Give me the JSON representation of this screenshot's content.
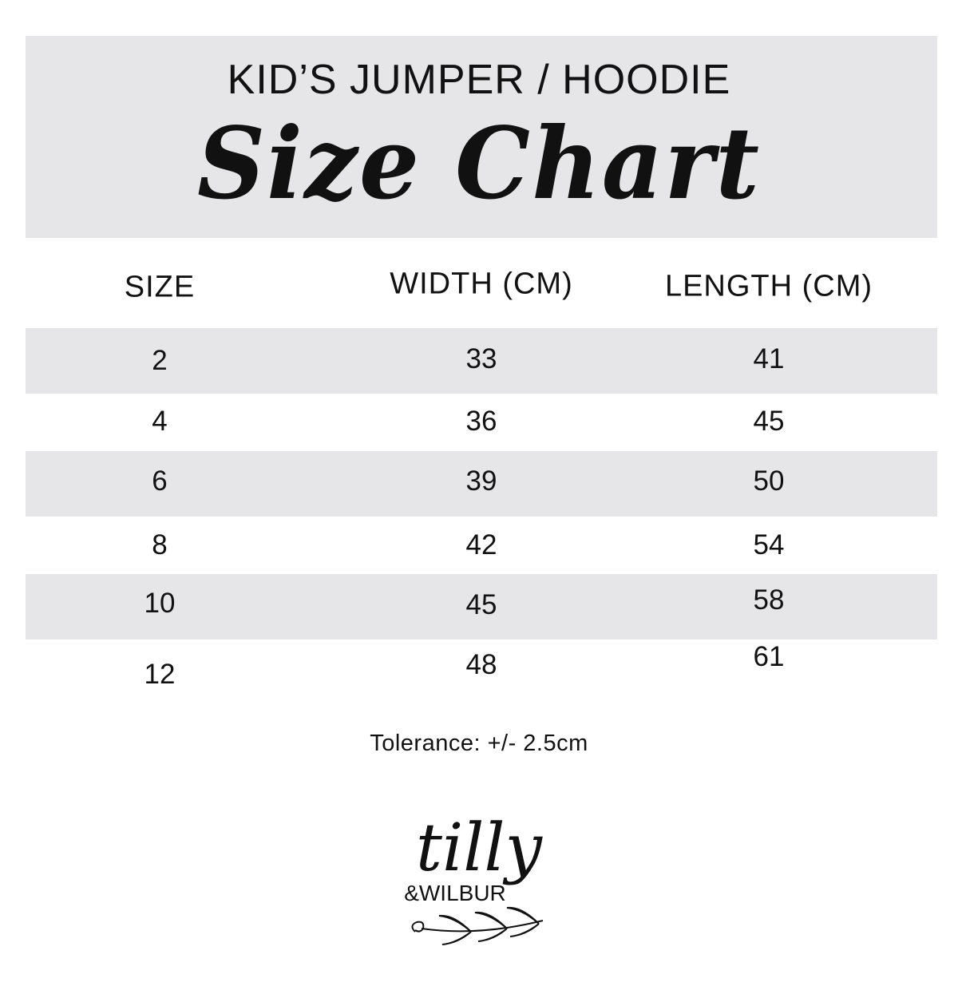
{
  "header": {
    "subtitle": "KID’S JUMPER / HOODIE",
    "title": "Size Chart"
  },
  "table": {
    "columns": [
      "SIZE",
      "WIDTH (CM)",
      "LENGTH (CM)"
    ],
    "rows": [
      [
        "2",
        "33",
        "41"
      ],
      [
        "4",
        "36",
        "45"
      ],
      [
        "6",
        "39",
        "50"
      ],
      [
        "8",
        "42",
        "54"
      ],
      [
        "10",
        "45",
        "58"
      ],
      [
        "12",
        "48",
        "61"
      ]
    ],
    "band_color": "#e6e6e8"
  },
  "footer": {
    "tolerance": "Tolerance: +/- 2.5cm"
  },
  "logo": {
    "line1": "tilly",
    "line2": "&WILBUR"
  }
}
